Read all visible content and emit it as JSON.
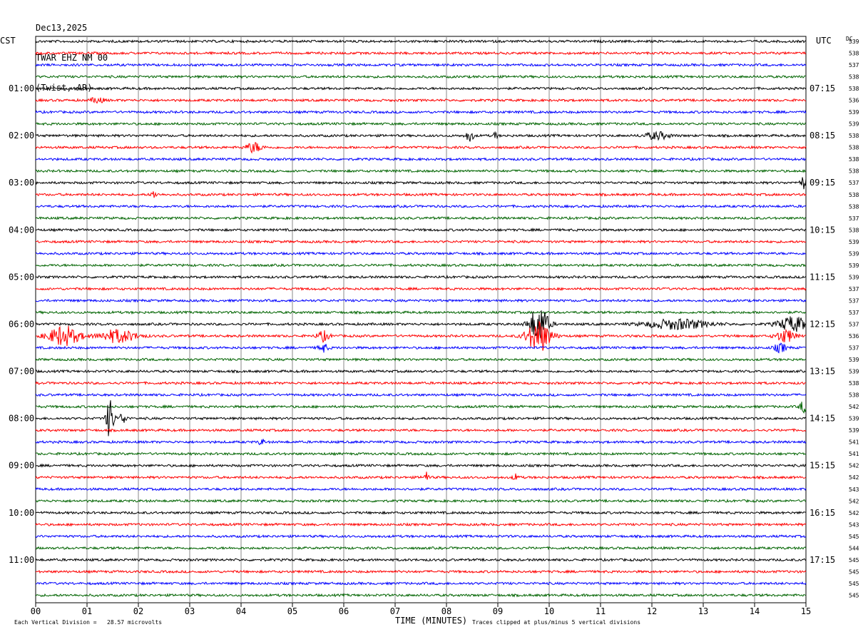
{
  "header": {
    "date": "Dec13,2025",
    "station": "TWAR EHZ NM 00",
    "location": "(Twist, AR)"
  },
  "left_timezone": "CST",
  "right_timezone": "UTC",
  "dc_label": "DC",
  "footer": {
    "scale_note": "Each Vertical Division =   28.57 microvolts",
    "clip_note": "Traces clipped at plus/minus 5 vertical divisions"
  },
  "chart_data": {
    "type": "line",
    "title": "",
    "xlabel": "TIME (MINUTES)",
    "ylabel": "",
    "x_ticks": [
      "00",
      "01",
      "02",
      "03",
      "04",
      "05",
      "06",
      "07",
      "08",
      "09",
      "10",
      "11",
      "12",
      "13",
      "14",
      "15"
    ],
    "xlim": [
      0,
      15
    ],
    "grid": true,
    "trace_colors": [
      "#000000",
      "#ff0000",
      "#0000ff",
      "#006400"
    ],
    "left_hour_labels": [
      "01:00",
      "02:00",
      "03:00",
      "04:00",
      "05:00",
      "06:00",
      "07:00",
      "08:00",
      "09:00",
      "10:00",
      "11:00"
    ],
    "right_hour_labels": [
      "07:15",
      "08:15",
      "09:15",
      "10:15",
      "11:15",
      "12:15",
      "13:15",
      "14:15",
      "15:15",
      "16:15",
      "17:15"
    ],
    "dc_offsets": [
      "539",
      "538",
      "537",
      "538",
      "538",
      "536",
      "539",
      "539",
      "538",
      "538",
      "538",
      "538",
      "537",
      "538",
      "538",
      "537",
      "538",
      "539",
      "539",
      "539",
      "539",
      "537",
      "537",
      "537",
      "537",
      "536",
      "537",
      "539",
      "539",
      "538",
      "538",
      "542",
      "539",
      "539",
      "541",
      "541",
      "542",
      "542",
      "543",
      "542",
      "542",
      "543",
      "545",
      "544",
      "545",
      "545",
      "545",
      "545"
    ],
    "events": [
      {
        "trace": 5,
        "minute": 1.2,
        "amplitude": 4,
        "width": 0.2
      },
      {
        "trace": 8,
        "minute": 8.45,
        "amplitude": 8,
        "width": 0.12
      },
      {
        "trace": 8,
        "minute": 8.95,
        "amplitude": 5,
        "width": 0.06
      },
      {
        "trace": 8,
        "minute": 12.1,
        "amplitude": 5,
        "width": 0.4
      },
      {
        "trace": 9,
        "minute": 4.25,
        "amplitude": 7,
        "width": 0.25
      },
      {
        "trace": 12,
        "minute": 14.95,
        "amplitude": 8,
        "width": 0.12
      },
      {
        "trace": 13,
        "minute": 2.3,
        "amplitude": 5,
        "width": 0.1
      },
      {
        "trace": 24,
        "minute": 9.8,
        "amplitude": 26,
        "width": 0.3
      },
      {
        "trace": 24,
        "minute": 12.5,
        "amplitude": 7,
        "width": 1.0
      },
      {
        "trace": 24,
        "minute": 14.75,
        "amplitude": 10,
        "width": 0.5
      },
      {
        "trace": 25,
        "minute": 0.55,
        "amplitude": 14,
        "width": 0.5
      },
      {
        "trace": 25,
        "minute": 1.6,
        "amplitude": 9,
        "width": 0.6
      },
      {
        "trace": 25,
        "minute": 5.6,
        "amplitude": 7,
        "width": 0.2
      },
      {
        "trace": 25,
        "minute": 9.8,
        "amplitude": 22,
        "width": 0.4
      },
      {
        "trace": 25,
        "minute": 14.6,
        "amplitude": 9,
        "width": 0.3
      },
      {
        "trace": 26,
        "minute": 5.6,
        "amplitude": 6,
        "width": 0.15
      },
      {
        "trace": 26,
        "minute": 14.5,
        "amplitude": 6,
        "width": 0.2
      },
      {
        "trace": 31,
        "minute": 14.95,
        "amplitude": 8,
        "width": 0.12
      },
      {
        "trace": 32,
        "minute": 1.45,
        "amplitude": 30,
        "width": 0.12
      },
      {
        "trace": 32,
        "minute": 1.7,
        "amplitude": 8,
        "width": 0.12
      },
      {
        "trace": 34,
        "minute": 4.4,
        "amplitude": 4,
        "width": 0.1
      },
      {
        "trace": 37,
        "minute": 7.6,
        "amplitude": 7,
        "width": 0.1
      },
      {
        "trace": 37,
        "minute": 9.35,
        "amplitude": 4,
        "width": 0.1
      }
    ]
  }
}
